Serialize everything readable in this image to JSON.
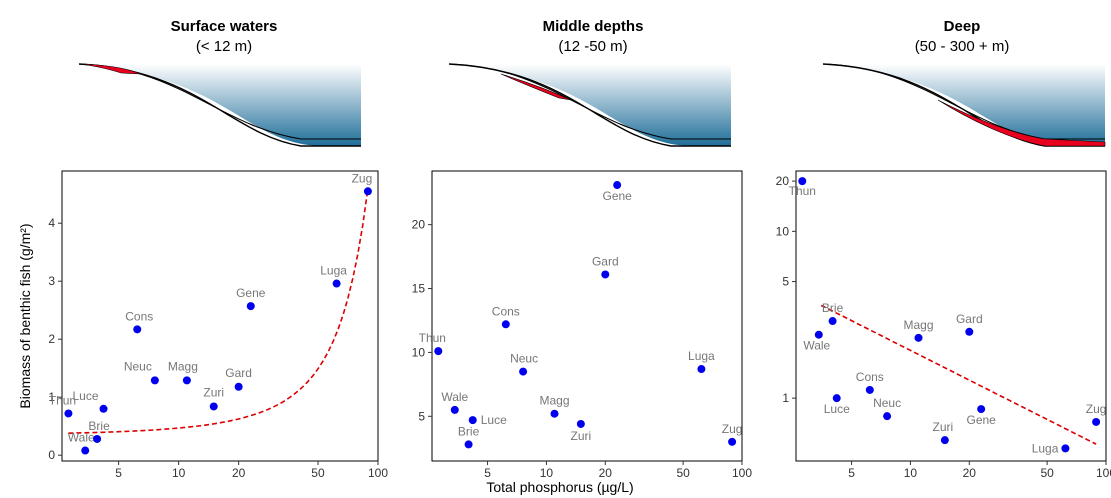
{
  "colors": {
    "point": "#0000ee",
    "fit": "#dd0000",
    "water_top": "#ffffff",
    "water_bottom": "#1f6e99",
    "zone_highlight": "#e8001e",
    "label": "#777777"
  },
  "xlabel": "Total phosphorus (µg/L)",
  "ylabel": "Biomass of benthic fish (g/m²)",
  "chart_data": [
    {
      "type": "scatter",
      "title": "Surface waters",
      "subtitle": "(< 12 m)",
      "highlight_zone": "surface",
      "x_scale": "log",
      "y_scale": "linear",
      "xlim": [
        2.6,
        100
      ],
      "ylim": [
        -0.1,
        4.9
      ],
      "x_ticks": [
        5,
        10,
        20,
        50,
        100
      ],
      "y_ticks": [
        0,
        1,
        2,
        3,
        4
      ],
      "fit": {
        "type": "exponential",
        "x": [
          2.8,
          89
        ],
        "y_start": 0.38,
        "y_end": 4.6,
        "style": "dashed"
      },
      "points": [
        {
          "name": "Thun",
          "x": 2.8,
          "y": 0.72
        },
        {
          "name": "Wale",
          "x": 3.4,
          "y": 0.08
        },
        {
          "name": "Brie",
          "x": 3.9,
          "y": 0.28
        },
        {
          "name": "Luce",
          "x": 4.2,
          "y": 0.8
        },
        {
          "name": "Cons",
          "x": 6.2,
          "y": 2.17
        },
        {
          "name": "Neuc",
          "x": 7.6,
          "y": 1.29
        },
        {
          "name": "Magg",
          "x": 11,
          "y": 1.29
        },
        {
          "name": "Zuri",
          "x": 15,
          "y": 0.84
        },
        {
          "name": "Gard",
          "x": 20,
          "y": 1.18
        },
        {
          "name": "Gene",
          "x": 23,
          "y": 2.57
        },
        {
          "name": "Luga",
          "x": 62,
          "y": 2.96
        },
        {
          "name": "Zug",
          "x": 89,
          "y": 4.55
        }
      ]
    },
    {
      "type": "scatter",
      "title": "Middle depths",
      "subtitle": "(12 -50 m)",
      "highlight_zone": "middle",
      "x_scale": "log",
      "y_scale": "linear",
      "xlim": [
        2.6,
        100
      ],
      "ylim": [
        1.5,
        24.2
      ],
      "x_ticks": [
        5,
        10,
        20,
        50,
        100
      ],
      "y_ticks": [
        5,
        10,
        15,
        20
      ],
      "points": [
        {
          "name": "Thun",
          "x": 2.8,
          "y": 10.1
        },
        {
          "name": "Wale",
          "x": 3.4,
          "y": 5.5
        },
        {
          "name": "Brie",
          "x": 4.0,
          "y": 2.8
        },
        {
          "name": "Luce",
          "x": 4.2,
          "y": 4.7
        },
        {
          "name": "Cons",
          "x": 6.2,
          "y": 12.2
        },
        {
          "name": "Neuc",
          "x": 7.6,
          "y": 8.5
        },
        {
          "name": "Magg",
          "x": 11,
          "y": 5.2
        },
        {
          "name": "Zuri",
          "x": 15,
          "y": 4.4
        },
        {
          "name": "Gard",
          "x": 20,
          "y": 16.1
        },
        {
          "name": "Gene",
          "x": 23,
          "y": 23.1
        },
        {
          "name": "Luga",
          "x": 62,
          "y": 8.7
        },
        {
          "name": "Zug",
          "x": 89,
          "y": 3.0
        }
      ]
    },
    {
      "type": "scatter",
      "title": "Deep",
      "subtitle": "(50 - 300 + m)",
      "highlight_zone": "deep",
      "x_scale": "log",
      "y_scale": "log",
      "xlim": [
        2.6,
        100
      ],
      "ylim": [
        0.42,
        23
      ],
      "x_ticks": [
        5,
        10,
        20,
        50,
        100
      ],
      "y_ticks": [
        1,
        5,
        10,
        20
      ],
      "fit": {
        "type": "power",
        "x": [
          3.5,
          89
        ],
        "y_start": 3.6,
        "y_end": 0.53,
        "style": "dashed"
      },
      "points": [
        {
          "name": "Thun",
          "x": 2.8,
          "y": 20
        },
        {
          "name": "Wale",
          "x": 3.4,
          "y": 2.4
        },
        {
          "name": "Brie",
          "x": 4.0,
          "y": 2.9
        },
        {
          "name": "Luce",
          "x": 4.2,
          "y": 1.0
        },
        {
          "name": "Cons",
          "x": 6.2,
          "y": 1.12
        },
        {
          "name": "Neuc",
          "x": 7.6,
          "y": 0.78
        },
        {
          "name": "Magg",
          "x": 11,
          "y": 2.3
        },
        {
          "name": "Zuri",
          "x": 15,
          "y": 0.56
        },
        {
          "name": "Gard",
          "x": 20,
          "y": 2.5
        },
        {
          "name": "Gene",
          "x": 23,
          "y": 0.86
        },
        {
          "name": "Luga",
          "x": 62,
          "y": 0.5
        },
        {
          "name": "Zug",
          "x": 89,
          "y": 0.72
        }
      ]
    }
  ]
}
